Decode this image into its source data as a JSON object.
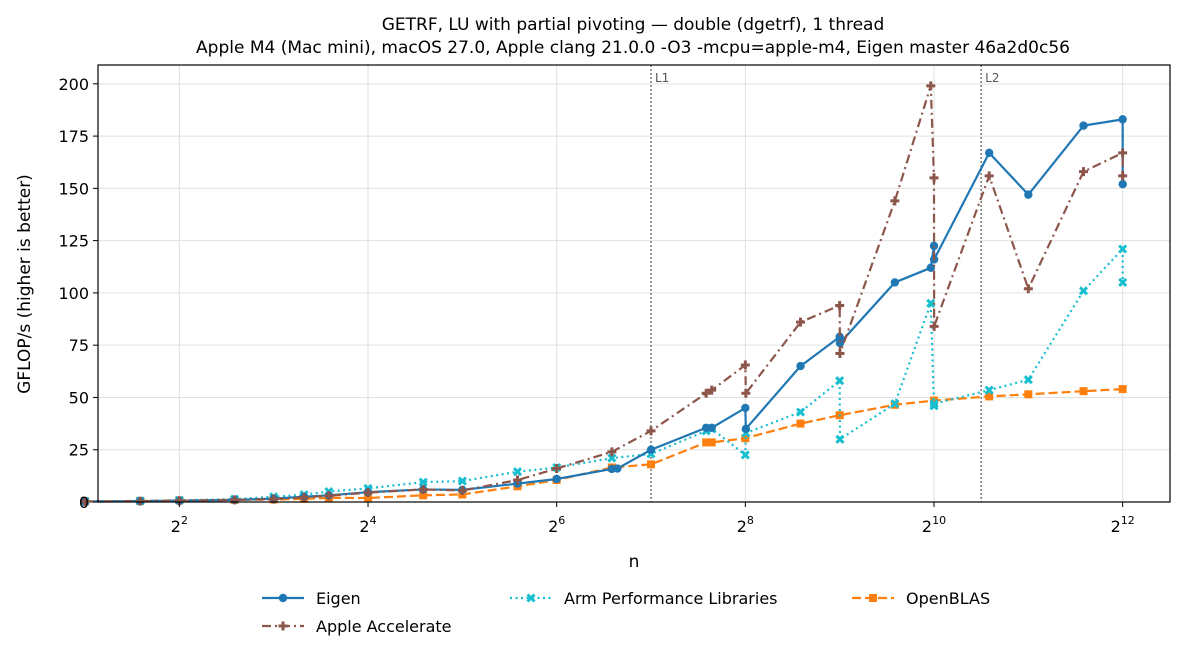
{
  "chart_data": {
    "type": "line",
    "title": "GETRF, LU with partial pivoting — double (dgetrf), 1 thread",
    "subtitle": "Apple M4 (Mac mini), macOS 27.0, Apple clang 21.0.0 -O3 -mcpu=apple-m4, Eigen master 46a2d0c56",
    "xlabel": "n",
    "ylabel": "GFLOP/s (higher is better)",
    "x_scale": "log2",
    "xlim": [
      2.2,
      5800
    ],
    "ylim": [
      0,
      209
    ],
    "x_ticks": [
      {
        "value": 4,
        "base": "2",
        "exp": "2"
      },
      {
        "value": 16,
        "base": "2",
        "exp": "4"
      },
      {
        "value": 64,
        "base": "2",
        "exp": "6"
      },
      {
        "value": 256,
        "base": "2",
        "exp": "8"
      },
      {
        "value": 1024,
        "base": "2",
        "exp": "10"
      },
      {
        "value": 4096,
        "base": "2",
        "exp": "12"
      }
    ],
    "y_ticks": [
      "0",
      "25",
      "50",
      "75",
      "100",
      "125",
      "150",
      "175",
      "200"
    ],
    "grid": true,
    "legend_position": "bottom-center",
    "vlines": [
      {
        "label": "L1",
        "x": 128
      },
      {
        "label": "L2",
        "x": 1448
      }
    ],
    "series": [
      {
        "name": "Eigen",
        "color": "#1f77b4",
        "marker": "circle",
        "dash": "solid",
        "x": [
          2,
          3,
          4,
          6,
          8,
          10,
          12,
          16,
          24,
          32,
          48,
          64,
          96,
          100,
          128,
          192,
          200,
          256,
          257,
          384,
          512,
          513,
          768,
          1000,
          1024,
          1025,
          1536,
          2048,
          3072,
          4096,
          4097
        ],
        "y": [
          0.2,
          0.4,
          0.6,
          1.0,
          1.6,
          2.5,
          3.2,
          4.7,
          6.0,
          5.8,
          8.8,
          11.0,
          15.8,
          16.0,
          25.0,
          35.5,
          35.5,
          45.0,
          35.0,
          65.0,
          79.0,
          76.0,
          105.0,
          112.0,
          122.5,
          116.0,
          167.0,
          147.0,
          180.0,
          183.0,
          152.0
        ]
      },
      {
        "name": "Apple Accelerate",
        "color": "#8c564b",
        "marker": "plus",
        "dash": "dashdot",
        "x": [
          2,
          3,
          4,
          6,
          8,
          10,
          12,
          16,
          24,
          32,
          48,
          64,
          96,
          128,
          192,
          200,
          256,
          257,
          384,
          512,
          513,
          768,
          1000,
          1024,
          1025,
          1536,
          2048,
          3072,
          4096,
          4097
        ],
        "y": [
          0.2,
          0.4,
          0.6,
          1.0,
          1.4,
          2.2,
          3.0,
          4.5,
          6.0,
          5.5,
          10.5,
          16.0,
          24.0,
          34.0,
          52.0,
          53.5,
          65.5,
          52.0,
          86.0,
          94.0,
          71.0,
          144.0,
          199.0,
          155.0,
          84.0,
          156.0,
          102.0,
          158.0,
          167.0,
          156.0
        ]
      },
      {
        "name": "Arm Performance Libraries",
        "color": "#17becf",
        "marker": "x",
        "dash": "dotted",
        "x": [
          2,
          3,
          4,
          6,
          8,
          10,
          12,
          16,
          24,
          32,
          48,
          64,
          96,
          128,
          192,
          200,
          256,
          257,
          384,
          512,
          513,
          768,
          1000,
          1024,
          1025,
          1536,
          2048,
          3072,
          4096,
          4097
        ],
        "y": [
          0.3,
          0.5,
          0.8,
          1.4,
          2.5,
          3.5,
          5.0,
          6.5,
          9.5,
          10.0,
          14.5,
          16.5,
          21.0,
          23.0,
          34.0,
          35.0,
          22.5,
          33.0,
          43.0,
          58.0,
          30.0,
          47.0,
          95.0,
          46.0,
          47.0,
          53.5,
          58.5,
          101.0,
          121.0,
          105.0
        ]
      },
      {
        "name": "OpenBLAS",
        "color": "#ff7f0e",
        "marker": "square",
        "dash": "dashed",
        "x": [
          2,
          3,
          4,
          6,
          8,
          10,
          12,
          16,
          24,
          32,
          48,
          64,
          96,
          128,
          192,
          200,
          256,
          384,
          512,
          768,
          1024,
          1536,
          2048,
          3072,
          4096
        ],
        "y": [
          0.3,
          0.5,
          0.8,
          1.0,
          1.2,
          1.5,
          2.0,
          1.9,
          3.2,
          3.6,
          7.5,
          10.5,
          16.5,
          18.0,
          28.5,
          28.5,
          30.5,
          37.5,
          41.5,
          46.5,
          48.5,
          50.5,
          51.5,
          53.0,
          54.0
        ]
      }
    ]
  }
}
